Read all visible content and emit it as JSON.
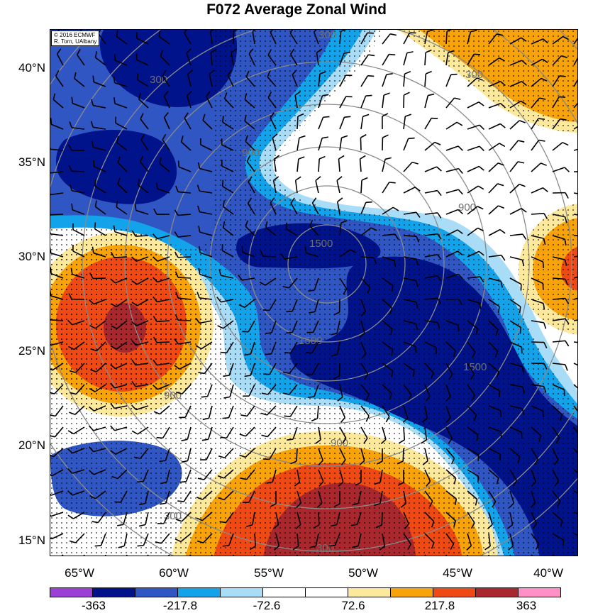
{
  "title": "F072 Average Zonal Wind",
  "credit": {
    "line1": "© 2016 ECMWF",
    "line2": "R. Torn, UAlbany"
  },
  "lat_labels": [
    "40°N",
    "35°N",
    "30°N",
    "25°N",
    "20°N",
    "15°N"
  ],
  "lon_labels": [
    "65°W",
    "60°W",
    "55°W",
    "50°W",
    "45°W",
    "40°W"
  ],
  "radius_labels": [
    "1500",
    "900",
    "300"
  ],
  "colorbar": {
    "labels": [
      "-363",
      "-217.8",
      "-72.6",
      "72.6",
      "217.8",
      "363"
    ],
    "colors": [
      "#9b3fd6",
      "#00138a",
      "#2f56c2",
      "#12a3ea",
      "#a9dcf6",
      "#ffffff",
      "#ffffff",
      "#fde99c",
      "#f9a30a",
      "#f04a14",
      "#a8282e",
      "#ff8fc6"
    ]
  },
  "map_colors": {
    "dark_blue": "#00138a",
    "mid_blue": "#2f56c2",
    "sky_blue": "#12a3ea",
    "pale_blue": "#a9dcf6",
    "white": "#ffffff",
    "pale_yellow": "#fde99c",
    "orange": "#f9a30a",
    "red_orange": "#f04a14",
    "dark_red": "#a8282e"
  }
}
